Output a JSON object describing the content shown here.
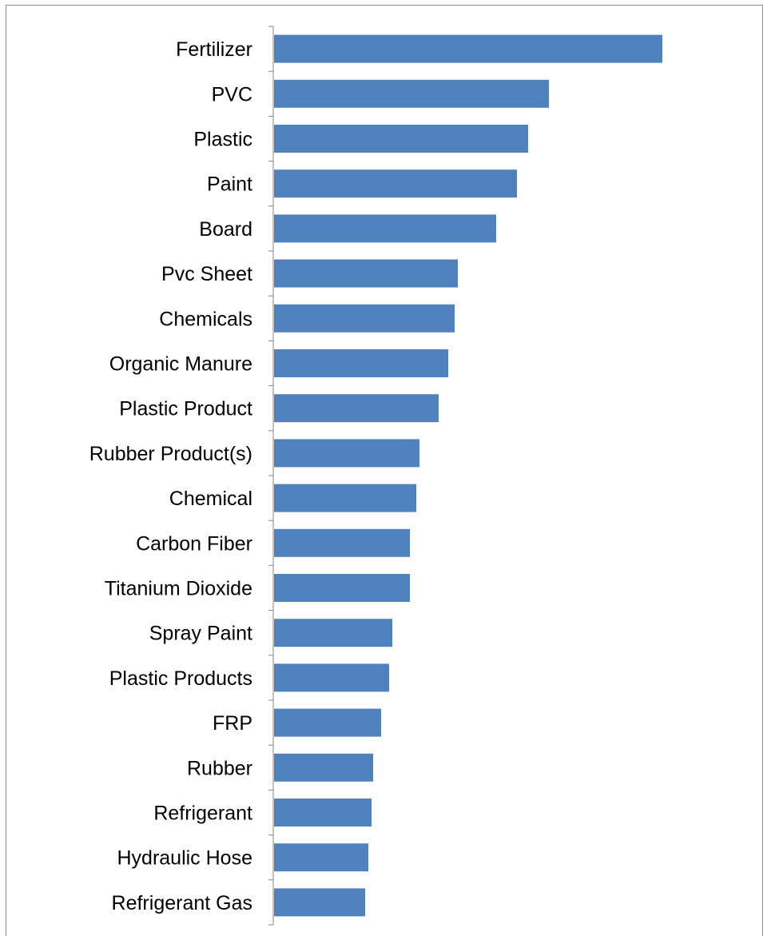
{
  "chart_data": {
    "type": "bar",
    "orientation": "horizontal",
    "categories": [
      "Fertilizer",
      "PVC",
      "Plastic",
      "Paint",
      "Board",
      "Pvc Sheet",
      "Chemicals",
      "Organic Manure",
      "Plastic Product",
      "Rubber Product(s)",
      "Chemical",
      "Carbon Fiber",
      "Titanium Dioxide",
      "Spray Paint",
      "Plastic Products",
      "FRP",
      "Rubber",
      "Refrigerant",
      "Hydraulic Hose",
      "Refrigerant Gas"
    ],
    "values": [
      243,
      172,
      159,
      152,
      139,
      115,
      113,
      109,
      103,
      91,
      89,
      85,
      85,
      74,
      72,
      67,
      62,
      61,
      59,
      57
    ],
    "xlim": [
      0,
      300
    ],
    "value_axis_visible": false,
    "grid": false,
    "legend": "none",
    "colors": {
      "bar": "#4f81bd",
      "axis": "#868686",
      "frame": "#8c8c8c"
    }
  }
}
